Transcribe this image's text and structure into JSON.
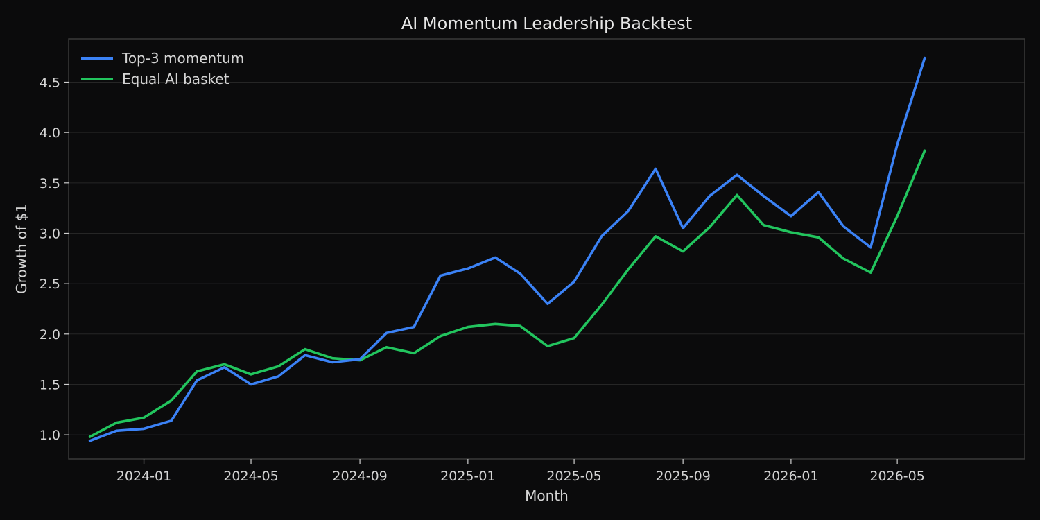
{
  "chart_data": {
    "type": "line",
    "title": "AI Momentum Leadership Backtest",
    "xlabel": "Month",
    "ylabel": "Growth of $1",
    "x": [
      "2023-11",
      "2023-12",
      "2024-01",
      "2024-02",
      "2024-03",
      "2024-04",
      "2024-05",
      "2024-06",
      "2024-07",
      "2024-08",
      "2024-09",
      "2024-10",
      "2024-11",
      "2024-12",
      "2025-01",
      "2025-02",
      "2025-03",
      "2025-04",
      "2025-05",
      "2025-06",
      "2025-07",
      "2025-08",
      "2025-09",
      "2025-10",
      "2025-11",
      "2025-12",
      "2026-01",
      "2026-02",
      "2026-03",
      "2026-04",
      "2026-05",
      "2026-06"
    ],
    "x_ticks": [
      "2024-01",
      "2024-05",
      "2024-09",
      "2025-01",
      "2025-05",
      "2025-09",
      "2026-01",
      "2026-05"
    ],
    "y_ticks": [
      1.0,
      1.5,
      2.0,
      2.5,
      3.0,
      3.5,
      4.0,
      4.5
    ],
    "ylim": [
      0.76,
      4.93
    ],
    "xlim": [
      "2023-10-08",
      "2026-09-22"
    ],
    "grid": "horizontal",
    "legend_position": "top-left",
    "series": [
      {
        "name": "Top-3 momentum",
        "color": "#3b82f6",
        "values": [
          0.94,
          1.04,
          1.06,
          1.14,
          1.54,
          1.67,
          1.5,
          1.58,
          1.79,
          1.72,
          1.75,
          2.01,
          2.07,
          2.58,
          2.65,
          2.76,
          2.6,
          2.3,
          2.52,
          2.97,
          3.22,
          3.64,
          3.05,
          3.37,
          3.58,
          3.37,
          3.17,
          3.41,
          3.07,
          2.86,
          3.88,
          4.74
        ]
      },
      {
        "name": "Equal AI basket",
        "color": "#22c55e",
        "values": [
          0.98,
          1.12,
          1.17,
          1.34,
          1.63,
          1.7,
          1.6,
          1.68,
          1.85,
          1.76,
          1.74,
          1.87,
          1.81,
          1.98,
          2.07,
          2.1,
          2.08,
          1.88,
          1.96,
          2.29,
          2.64,
          2.97,
          2.82,
          3.06,
          3.38,
          3.08,
          3.01,
          2.96,
          2.75,
          2.61,
          3.17,
          3.82
        ]
      }
    ]
  }
}
